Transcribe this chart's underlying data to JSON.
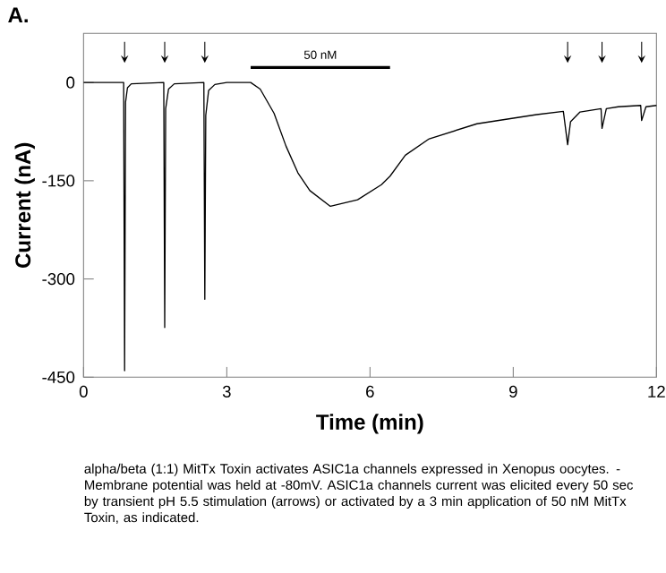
{
  "chart_data": {
    "type": "line",
    "xlabel": "Time (min)",
    "ylabel": "Current (nA)",
    "x": [
      0,
      0.84,
      0.86,
      0.88,
      0.92,
      1.0,
      1.68,
      1.7,
      1.72,
      1.78,
      1.9,
      2.52,
      2.54,
      2.56,
      2.62,
      2.75,
      3.0,
      3.5,
      3.7,
      3.99,
      4.24,
      4.49,
      4.74,
      5.17,
      5.74,
      6.24,
      6.42,
      6.74,
      7.24,
      8.24,
      9.49,
      10.05,
      10.14,
      10.2,
      10.4,
      10.84,
      10.86,
      10.95,
      11.2,
      11.67,
      11.69,
      11.78,
      12
    ],
    "series": [
      {
        "color": "#000000",
        "values": [
          0,
          0,
          -440,
          -30,
          -8,
          -2,
          0,
          -374,
          -40,
          -10,
          -2,
          0,
          -331,
          -50,
          -12,
          -3,
          0,
          0,
          -10,
          -47,
          -97,
          -138,
          -165,
          -189,
          -179,
          -156,
          -143,
          -111,
          -86,
          -63,
          -49,
          -44,
          -95,
          -60,
          -45,
          -40,
          -70,
          -40,
          -37,
          -35,
          -58,
          -37,
          -35
        ]
      },
      {
        "name": "50 nM",
        "color": "#000000",
        "x": [
          3.5,
          6.42
        ],
        "values": [
          23,
          23
        ]
      }
    ],
    "xlim": [
      0,
      12
    ],
    "ylim": [
      -450,
      75
    ],
    "xticks": [
      0,
      3,
      6,
      9,
      12
    ],
    "yticks": [
      0,
      -150,
      -300,
      -450
    ],
    "grid": false,
    "marker": "none",
    "line_style": "solid",
    "annotations": [
      "A.",
      "alpha/beta (1:1) MitTx Toxin activates ASIC1a channels expressed in Xenopus oocytes. - Membrane potential was held at -80mV. ASIC1a channels current was elicited every 50 sec by transient pH 5.5 stimulation (arrows) or activated by a 3 min application of 50 nM MitTx Toxin, as indicated."
    ]
  }
}
